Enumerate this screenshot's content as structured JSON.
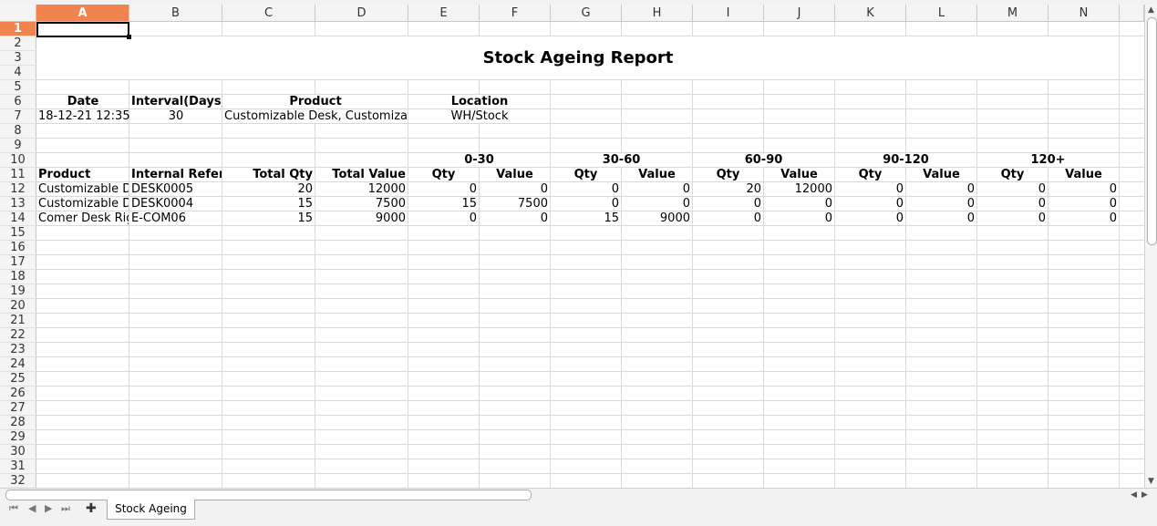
{
  "columns": [
    "A",
    "B",
    "C",
    "D",
    "E",
    "F",
    "G",
    "H",
    "I",
    "J",
    "K",
    "L",
    "M",
    "N"
  ],
  "selected_column": "A",
  "rows": [
    "1",
    "2",
    "3",
    "4",
    "5",
    "6",
    "7",
    "8",
    "9",
    "10",
    "11",
    "12",
    "13",
    "14",
    "15",
    "16",
    "17",
    "18",
    "19",
    "20",
    "21",
    "22",
    "23",
    "24",
    "25",
    "26",
    "27",
    "28",
    "29",
    "30",
    "31",
    "32"
  ],
  "selected_row": "1",
  "report": {
    "title": "Stock Ageing Report",
    "filters": {
      "date_label": "Date",
      "interval_label": "Interval(Days)",
      "product_label": "Product",
      "location_label": "Location",
      "date_value": "18-12-21 12:35",
      "interval_value": "30",
      "product_value": "Customizable Desk, Customizable Desk, Comer Desk Right Sit",
      "location_value": "WH/Stock"
    },
    "bucket_labels": [
      "0-30",
      "30-60",
      "60-90",
      "90-120",
      "120+"
    ],
    "table_headers": [
      "Product",
      "Internal Reference",
      "Total Qty",
      "Total Value",
      "Qty",
      "Value",
      "Qty",
      "Value",
      "Qty",
      "Value",
      "Qty",
      "Value",
      "Qty",
      "Value"
    ],
    "table_rows": [
      [
        "Customizable Desk",
        "DESK0005",
        "20",
        "12000",
        "0",
        "0",
        "0",
        "0",
        "20",
        "12000",
        "0",
        "0",
        "0",
        "0"
      ],
      [
        "Customizable Desk",
        "DESK0004",
        "15",
        "7500",
        "15",
        "7500",
        "0",
        "0",
        "0",
        "0",
        "0",
        "0",
        "0",
        "0"
      ],
      [
        "Comer Desk Right Sit",
        "E-COM06",
        "15",
        "9000",
        "0",
        "0",
        "15",
        "9000",
        "0",
        "0",
        "0",
        "0",
        "0",
        "0"
      ]
    ]
  },
  "sheet_tabs": {
    "active": "Stock Ageing",
    "add_label": "✚",
    "nav_first": "⏮",
    "nav_prev": "◀",
    "nav_next": "▶",
    "nav_last": "⏭"
  },
  "icons": {
    "add": "plus-icon",
    "first": "first-sheet-icon",
    "prev": "prev-sheet-icon",
    "next": "next-sheet-icon",
    "last": "last-sheet-icon"
  },
  "colors": {
    "selected_header": "#f0834f",
    "grid": "#d9d9d9"
  }
}
